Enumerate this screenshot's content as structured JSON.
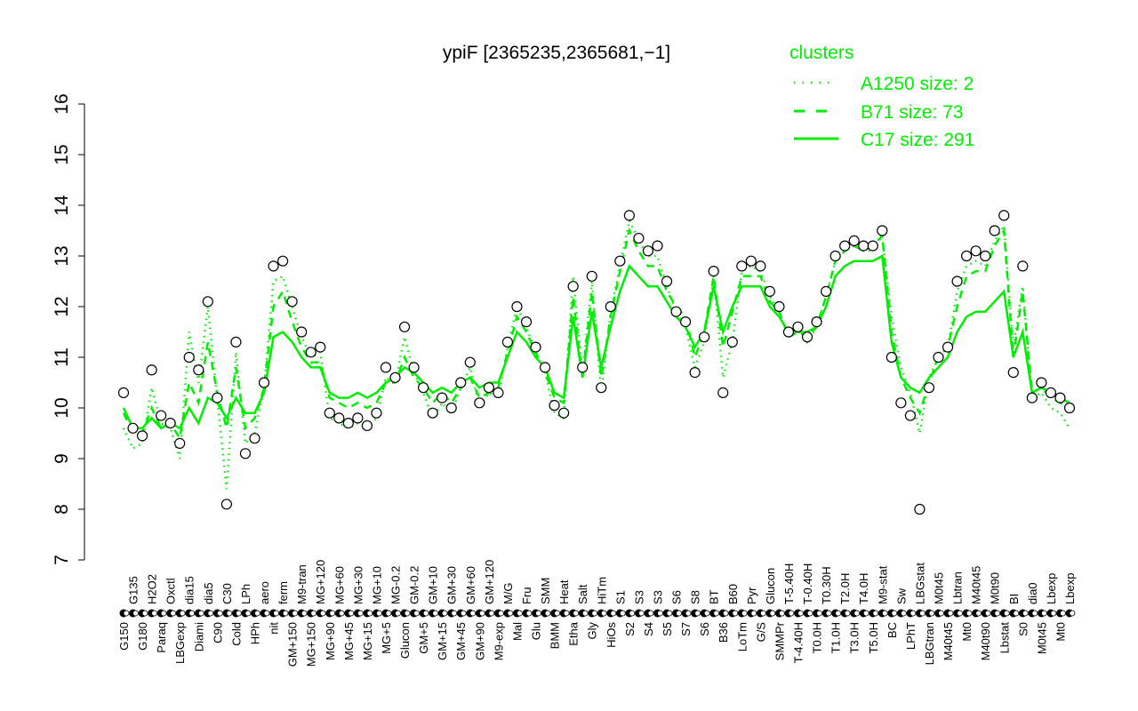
{
  "chart_data": {
    "type": "line",
    "title": "ypiF [2365235,2365681,−1]",
    "xlabel": "",
    "ylabel": "",
    "ylim": [
      7,
      16
    ],
    "yticks": [
      7,
      8,
      9,
      10,
      11,
      12,
      13,
      14,
      15,
      16
    ],
    "grid": false,
    "legend": {
      "title": "clusters",
      "placement": "top-right",
      "color": "#00ee00",
      "entries": [
        {
          "label": "A1250 size: 2",
          "style": "dotted"
        },
        {
          "label": "B71 size: 73",
          "style": "dashed"
        },
        {
          "label": "C17 size: 291",
          "style": "solid"
        }
      ]
    },
    "line_color": "#00ee00",
    "point_style": "open-circle",
    "categories": [
      "G150",
      "G135",
      "G180",
      "H2O2",
      "Paraq",
      "Oxctl",
      "LBGexp",
      "dia15",
      "Diami",
      "dia5",
      "C90",
      "C30",
      "Cold",
      "LPh",
      "HPh",
      "aero",
      "nit",
      "ferm",
      "GM+150",
      "M9-tran",
      "MG+150",
      "MG+120",
      "MG+90",
      "MG+60",
      "MG+45",
      "MG+30",
      "MG+15",
      "MG+10",
      "MG+5",
      "MG-0.2",
      "Glucon",
      "GM-0.2",
      "GM+5",
      "GM+10",
      "GM+15",
      "GM+30",
      "GM+45",
      "GM+60",
      "GM+90",
      "GM+120",
      "M9-exp",
      "M/G",
      "Mal",
      "Fru",
      "Glu",
      "SMM",
      "BMM",
      "Heat",
      "Etha",
      "Salt",
      "Gly",
      "HiTm",
      "HiOs",
      "S1",
      "S2",
      "S3",
      "S4",
      "S3",
      "S5",
      "S6",
      "S7",
      "S8",
      "S6",
      "BT",
      "B36",
      "B60",
      "LoTm",
      "Pyr",
      "G/S",
      "Glucon",
      "SMMPr",
      "T-5.40H",
      "T-4.40H",
      "T-0.40H",
      "T0.0H",
      "T0.30H",
      "T1.0H",
      "T2.0H",
      "T3.0H",
      "T4.0H",
      "T5.0H",
      "M9-stat",
      "BC",
      "Sw",
      "LPhT",
      "LBGstat",
      "LBGtran",
      "M0t45",
      "M40t45",
      "Lbtran",
      "Mt0",
      "M40t45",
      "M40t90",
      "M0t90",
      "Lbstat",
      "BI",
      "S0",
      "dia0",
      "M0t45",
      "Lbexp",
      "Mt0",
      "Lbexp"
    ],
    "series": [
      {
        "name": "",
        "kind": "points",
        "values": [
          10.3,
          9.6,
          9.45,
          10.75,
          9.85,
          9.7,
          9.3,
          11.0,
          10.75,
          12.1,
          10.2,
          8.1,
          11.3,
          9.1,
          9.4,
          10.5,
          12.8,
          12.9,
          12.1,
          11.5,
          11.1,
          11.2,
          9.9,
          9.8,
          9.7,
          9.8,
          9.65,
          9.9,
          10.8,
          10.6,
          11.6,
          10.8,
          10.4,
          9.9,
          10.2,
          10.0,
          10.5,
          10.9,
          10.1,
          10.4,
          10.3,
          11.3,
          12.0,
          11.7,
          11.2,
          10.8,
          10.05,
          9.9,
          12.4,
          10.8,
          12.6,
          10.4,
          12.0,
          12.9,
          13.8,
          13.35,
          13.1,
          13.2,
          12.5,
          11.9,
          11.7,
          10.7,
          11.4,
          12.7,
          10.3,
          11.3,
          12.8,
          12.9,
          12.8,
          12.3,
          12.0,
          11.5,
          11.6,
          11.4,
          11.7,
          12.3,
          13.0,
          13.2,
          13.3,
          13.2,
          13.2,
          13.5,
          11.0,
          10.1,
          9.85,
          8.0,
          10.4,
          11.0,
          11.2,
          12.5,
          13.0,
          13.1,
          13.0,
          13.5,
          13.8,
          10.7,
          12.8,
          10.2,
          10.5,
          10.3,
          10.2,
          10.0
        ]
      },
      {
        "name": "C17 size: 291",
        "kind": "line",
        "style": "solid",
        "values": [
          10.0,
          9.6,
          9.6,
          9.8,
          9.6,
          9.7,
          9.6,
          10.0,
          9.7,
          10.2,
          10.1,
          9.8,
          10.2,
          9.9,
          9.9,
          10.3,
          11.4,
          11.5,
          11.3,
          11.0,
          10.8,
          10.8,
          10.3,
          10.2,
          10.2,
          10.3,
          10.2,
          10.3,
          10.5,
          10.6,
          10.8,
          10.7,
          10.5,
          10.3,
          10.4,
          10.3,
          10.5,
          10.6,
          10.4,
          10.5,
          10.5,
          11.0,
          11.5,
          11.3,
          11.0,
          10.8,
          10.3,
          10.2,
          11.8,
          10.6,
          11.9,
          10.8,
          11.6,
          12.3,
          12.8,
          12.6,
          12.4,
          12.4,
          12.1,
          11.8,
          11.6,
          11.2,
          11.5,
          12.4,
          11.5,
          12.0,
          12.4,
          12.4,
          12.4,
          12.0,
          11.8,
          11.5,
          11.5,
          11.5,
          11.6,
          12.0,
          12.6,
          12.8,
          12.9,
          12.9,
          12.9,
          13.0,
          11.3,
          10.6,
          10.4,
          10.3,
          10.6,
          10.8,
          11.0,
          11.5,
          11.8,
          11.9,
          11.9,
          12.1,
          12.3,
          11.0,
          11.5,
          10.3,
          10.4,
          10.3,
          10.2,
          10.1
        ]
      },
      {
        "name": "B71 size: 73",
        "kind": "line",
        "style": "dashed",
        "values": [
          9.9,
          9.5,
          9.5,
          10.0,
          9.6,
          9.7,
          9.4,
          10.5,
          10.1,
          11.3,
          10.3,
          9.6,
          10.8,
          9.6,
          9.8,
          10.4,
          12.0,
          12.3,
          11.7,
          11.2,
          10.9,
          10.9,
          10.2,
          10.1,
          10.0,
          10.1,
          10.0,
          10.1,
          10.5,
          10.5,
          11.0,
          10.6,
          10.4,
          10.1,
          10.3,
          10.1,
          10.4,
          10.6,
          10.2,
          10.3,
          10.4,
          11.1,
          11.8,
          11.5,
          11.1,
          10.7,
          10.2,
          10.1,
          12.2,
          10.6,
          12.3,
          10.6,
          11.8,
          12.7,
          13.5,
          13.1,
          12.8,
          12.8,
          12.3,
          12.0,
          11.8,
          11.0,
          11.5,
          12.6,
          11.2,
          11.9,
          12.6,
          12.6,
          12.6,
          12.1,
          11.9,
          11.4,
          11.5,
          11.4,
          11.6,
          12.2,
          12.9,
          13.1,
          13.2,
          13.1,
          13.2,
          13.4,
          11.5,
          10.6,
          10.2,
          9.9,
          10.5,
          11.0,
          11.2,
          12.0,
          12.6,
          12.7,
          12.7,
          13.2,
          13.5,
          11.0,
          12.3,
          10.3,
          10.4,
          10.2,
          10.1,
          10.0
        ]
      },
      {
        "name": "A1250 size: 2",
        "kind": "line",
        "style": "dotted",
        "values": [
          9.6,
          9.2,
          9.3,
          10.4,
          9.7,
          9.6,
          9.0,
          11.5,
          10.5,
          12.0,
          10.2,
          8.4,
          11.1,
          9.3,
          9.5,
          10.4,
          12.5,
          12.6,
          12.0,
          11.4,
          11.0,
          11.1,
          9.8,
          9.7,
          9.6,
          9.7,
          9.6,
          9.8,
          10.6,
          10.5,
          11.4,
          10.7,
          10.3,
          9.8,
          10.1,
          9.9,
          10.4,
          10.8,
          10.0,
          10.3,
          10.2,
          11.2,
          12.0,
          11.6,
          11.1,
          10.7,
          9.9,
          9.8,
          12.6,
          10.7,
          12.5,
          10.3,
          11.9,
          12.8,
          13.7,
          13.3,
          13.0,
          13.0,
          12.4,
          11.9,
          11.6,
          10.8,
          11.3,
          12.6,
          10.6,
          11.3,
          12.7,
          12.8,
          12.7,
          12.2,
          11.9,
          11.4,
          11.6,
          11.3,
          11.6,
          12.2,
          12.9,
          13.1,
          13.2,
          13.1,
          13.1,
          13.4,
          11.8,
          10.8,
          10.3,
          9.5,
          10.6,
          11.0,
          11.2,
          12.3,
          12.8,
          12.9,
          12.8,
          13.3,
          13.6,
          11.2,
          12.4,
          10.2,
          10.3,
          10.0,
          9.9,
          9.6
        ]
      }
    ]
  }
}
